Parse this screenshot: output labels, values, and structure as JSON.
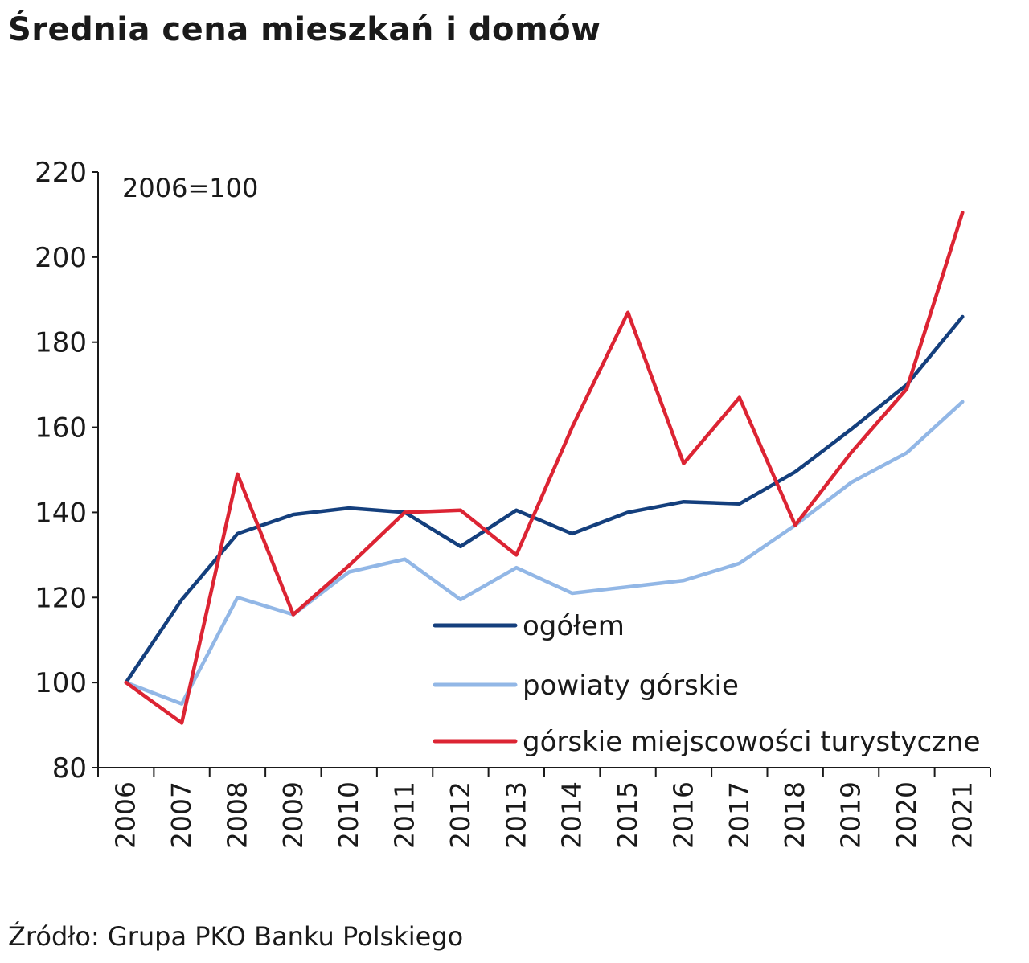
{
  "title": "Średnia cena mieszkań i domów",
  "source": "Źródło: Grupa PKO Banku Polskiego",
  "colors": {
    "axis": "#1a1a1a",
    "text": "#1a1a1a"
  },
  "chart_data": {
    "type": "line",
    "title": "Średnia cena mieszkań i domów",
    "annotation": "2006=100",
    "xlabel": "",
    "ylabel": "",
    "ylim": [
      80,
      220
    ],
    "yticks": [
      80,
      100,
      120,
      140,
      160,
      180,
      200,
      220
    ],
    "categories": [
      "2006",
      "2007",
      "2008",
      "2009",
      "2010",
      "2011",
      "2012",
      "2013",
      "2014",
      "2015",
      "2016",
      "2017",
      "2018",
      "2019",
      "2020",
      "2021"
    ],
    "grid": false,
    "legend_position": "bottom-right",
    "series": [
      {
        "name": "ogółem",
        "color": "#143f7d",
        "values": [
          100,
          119.5,
          135,
          139.5,
          141,
          140,
          132,
          140.5,
          135,
          140,
          142.5,
          142,
          149.5,
          159.5,
          170,
          186
        ]
      },
      {
        "name": "powiaty górskie",
        "color": "#92b7e6",
        "values": [
          100,
          95,
          120,
          116,
          126,
          129,
          119.5,
          127,
          121,
          122.5,
          124,
          128,
          137,
          147,
          154,
          166
        ]
      },
      {
        "name": "górskie miejscowości turystyczne",
        "color": "#dc2433",
        "values": [
          100,
          90.5,
          149,
          116,
          127.5,
          140,
          140.5,
          130,
          160,
          187,
          151.5,
          167,
          137,
          154,
          169,
          210.5
        ]
      }
    ]
  }
}
